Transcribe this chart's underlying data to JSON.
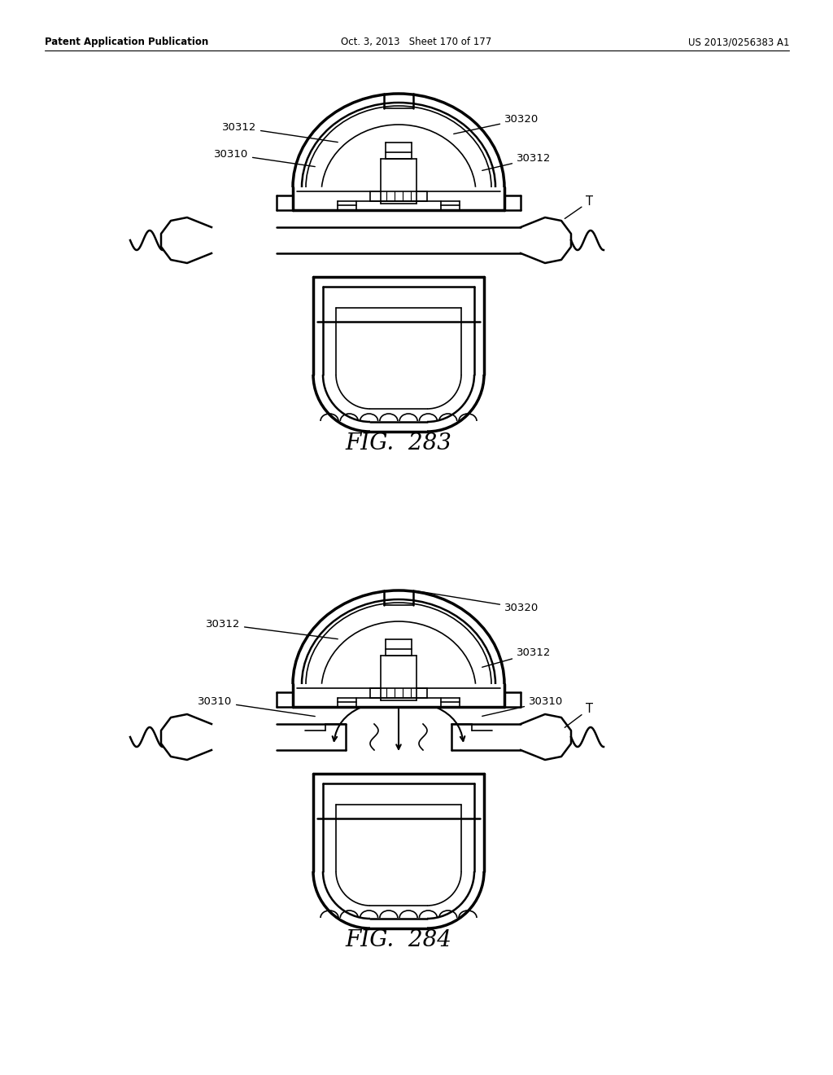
{
  "bg_color": "#ffffff",
  "line_color": "#000000",
  "header_left": "Patent Application Publication",
  "header_center": "Oct. 3, 2013   Sheet 170 of 177",
  "header_right": "US 2013/0256383 A1",
  "fig283_label": "FIG.  283",
  "fig284_label": "FIG.  284"
}
